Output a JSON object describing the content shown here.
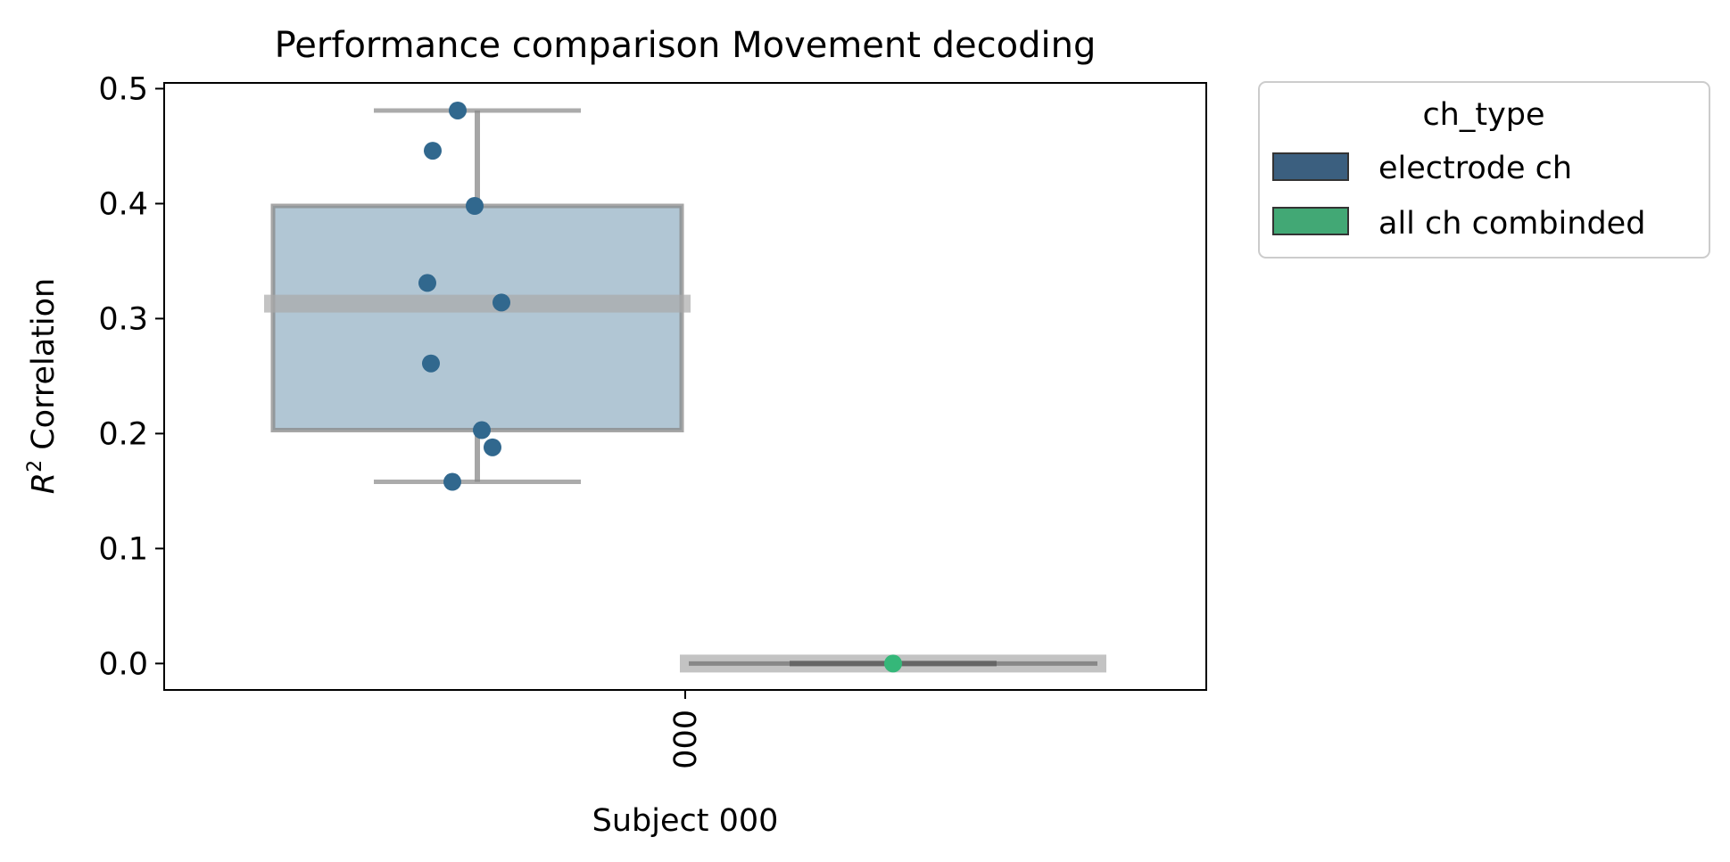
{
  "chart_data": {
    "type": "box",
    "title": "Performance comparison Movement decoding",
    "xlabel": "Subject 000",
    "ylabel_base": "R",
    "ylabel_sup": "2",
    "ylabel_rest": " Correlation",
    "categories": [
      "000"
    ],
    "ylim": [
      -0.023,
      0.505
    ],
    "yticks": [
      0.0,
      0.1,
      0.2,
      0.3,
      0.4,
      0.5
    ],
    "ytick_labels": [
      "0.0",
      "0.1",
      "0.2",
      "0.3",
      "0.4",
      "0.5"
    ],
    "legend": {
      "title": "ch_type",
      "placement": "outside-upper-right"
    },
    "series": [
      {
        "name": "electrode ch",
        "color": "#31688e",
        "box": {
          "q1": 0.203,
          "median": 0.313,
          "q3": 0.398,
          "whisker_low": 0.158,
          "whisker_high": 0.481
        },
        "points": [
          0.481,
          0.446,
          0.398,
          0.331,
          0.314,
          0.261,
          0.203,
          0.188,
          0.158
        ]
      },
      {
        "name": "all ch combinded",
        "color": "#35b779",
        "box": {
          "q1": 0.0,
          "median": 0.0,
          "q3": 0.0,
          "whisker_low": 0.0,
          "whisker_high": 0.0
        },
        "points": [
          0.0
        ]
      }
    ]
  }
}
